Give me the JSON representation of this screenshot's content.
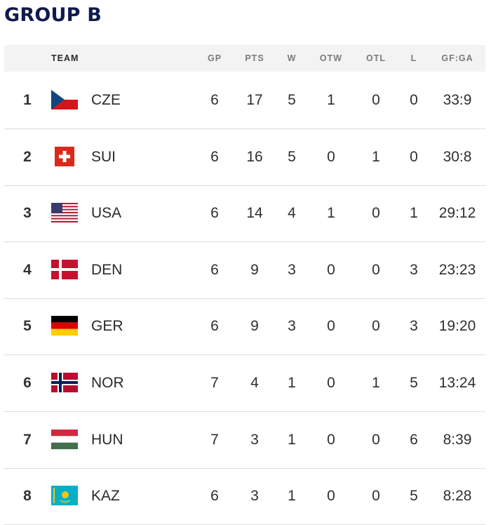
{
  "title": "GROUP B",
  "headers": {
    "team": "TEAM",
    "gp": "GP",
    "pts": "PTS",
    "w": "W",
    "otw": "OTW",
    "otl": "OTL",
    "l": "L",
    "gfga": "GF:GA"
  },
  "rows": [
    {
      "rank": "1",
      "team": "CZE",
      "flag": "czech-flag-icon",
      "gp": "6",
      "pts": "17",
      "w": "5",
      "otw": "1",
      "otl": "0",
      "l": "0",
      "gfga": "33:9"
    },
    {
      "rank": "2",
      "team": "SUI",
      "flag": "swiss-flag-icon",
      "gp": "6",
      "pts": "16",
      "w": "5",
      "otw": "0",
      "otl": "1",
      "l": "0",
      "gfga": "30:8"
    },
    {
      "rank": "3",
      "team": "USA",
      "flag": "usa-flag-icon",
      "gp": "6",
      "pts": "14",
      "w": "4",
      "otw": "1",
      "otl": "0",
      "l": "1",
      "gfga": "29:12"
    },
    {
      "rank": "4",
      "team": "DEN",
      "flag": "danish-flag-icon",
      "gp": "6",
      "pts": "9",
      "w": "3",
      "otw": "0",
      "otl": "0",
      "l": "3",
      "gfga": "23:23"
    },
    {
      "rank": "5",
      "team": "GER",
      "flag": "german-flag-icon",
      "gp": "6",
      "pts": "9",
      "w": "3",
      "otw": "0",
      "otl": "0",
      "l": "3",
      "gfga": "19:20"
    },
    {
      "rank": "6",
      "team": "NOR",
      "flag": "norwegian-flag-icon",
      "gp": "7",
      "pts": "4",
      "w": "1",
      "otw": "0",
      "otl": "1",
      "l": "5",
      "gfga": "13:24"
    },
    {
      "rank": "7",
      "team": "HUN",
      "flag": "hungarian-flag-icon",
      "gp": "7",
      "pts": "3",
      "w": "1",
      "otw": "0",
      "otl": "0",
      "l": "6",
      "gfga": "8:39"
    },
    {
      "rank": "8",
      "team": "KAZ",
      "flag": "kazakh-flag-icon",
      "gp": "6",
      "pts": "3",
      "w": "1",
      "otw": "0",
      "otl": "0",
      "l": "5",
      "gfga": "8:28"
    }
  ],
  "colors": {
    "title": "#111a4d",
    "header_bg": "#f3f3f3",
    "header_text": "#7a7a7a",
    "row_border": "#dcdcdc"
  }
}
